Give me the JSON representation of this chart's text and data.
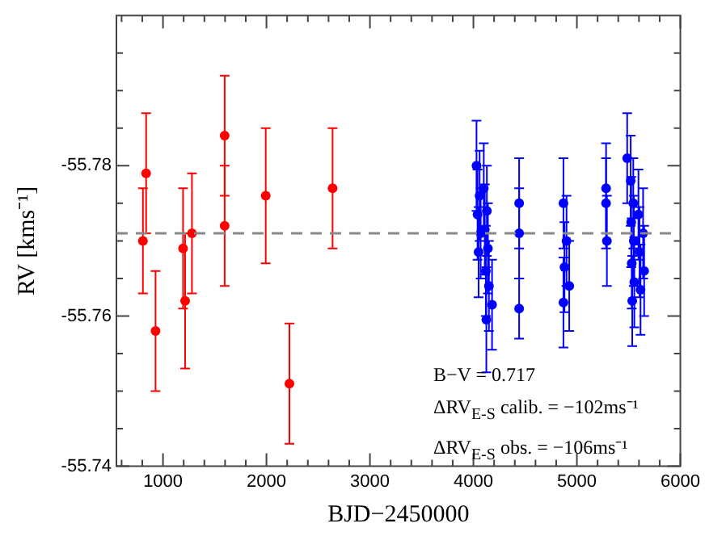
{
  "chart_data": {
    "type": "scatter",
    "xlabel": "BJD−2450000",
    "ylabel": "RV [kms⁻¹]",
    "xlim": [
      550,
      6000
    ],
    "xticks": [
      {
        "value": 600,
        "label": null
      },
      {
        "value": 800,
        "label": null
      },
      1000,
      {
        "value": 1200,
        "label": null
      },
      {
        "value": 1400,
        "label": null
      },
      {
        "value": 1600,
        "label": null
      },
      {
        "value": 1800,
        "label": null
      },
      2000,
      {
        "value": 2200,
        "label": null
      },
      {
        "value": 2400,
        "label": null
      },
      {
        "value": 2600,
        "label": null
      },
      {
        "value": 2800,
        "label": null
      },
      3000,
      {
        "value": 3200,
        "label": null
      },
      {
        "value": 3400,
        "label": null
      },
      {
        "value": 3600,
        "label": null
      },
      {
        "value": 3800,
        "label": null
      },
      4000,
      {
        "value": 4200,
        "label": null
      },
      {
        "value": 4400,
        "label": null
      },
      {
        "value": 4600,
        "label": null
      },
      {
        "value": 4800,
        "label": null
      },
      5000,
      {
        "value": 5200,
        "label": null
      },
      {
        "value": 5400,
        "label": null
      },
      {
        "value": 5600,
        "label": null
      },
      {
        "value": 5800,
        "label": null
      },
      6000
    ],
    "ylim": [
      -55.74,
      -55.8
    ],
    "yticks": [
      -55.74,
      {
        "value": -55.745,
        "label": null
      },
      {
        "value": -55.75,
        "label": null
      },
      {
        "value": -55.755,
        "label": null
      },
      -55.76,
      {
        "value": -55.765,
        "label": null
      },
      {
        "value": -55.77,
        "label": null
      },
      {
        "value": -55.775,
        "label": null
      },
      -55.78,
      {
        "value": -55.785,
        "label": null
      },
      {
        "value": -55.79,
        "label": null
      },
      {
        "value": -55.795,
        "label": null
      }
    ],
    "grid": false,
    "legend": false,
    "marker": "circle",
    "ref_lines": [
      {
        "axis": "y",
        "value": -55.771,
        "color": "#888888",
        "line_style": "dashed"
      }
    ],
    "annotations": [
      "B−V = 0.717",
      "ΔRV$_{E-S}$ calib. = −102ms⁻¹",
      "ΔRV$_{E-S}$ obs. = −106ms⁻¹"
    ],
    "series": [
      {
        "color": "#ff0000",
        "x": [
          806,
          837,
          928,
          1194,
          1214,
          1280,
          1596,
          1596,
          1993,
          2222,
          2639
        ],
        "values": [
          -55.77,
          -55.779,
          -55.758,
          -55.769,
          -55.762,
          -55.771,
          -55.784,
          -55.772,
          -55.776,
          -55.751,
          -55.777
        ],
        "errors": [
          0.007,
          0.008,
          0.008,
          0.008,
          0.009,
          0.008,
          0.008,
          0.008,
          0.009,
          0.008,
          0.008
        ]
      },
      {
        "color": "#0000ff",
        "x": [
          4030,
          4060,
          4040,
          4070,
          4050,
          4100,
          4130,
          4110,
          4140,
          4120,
          4150,
          4180,
          4125,
          4442,
          4442,
          4442,
          4870,
          4900,
          4880,
          4926,
          4870,
          5282,
          5282,
          5290,
          5486,
          5520,
          5545,
          5525,
          5550,
          5530,
          5555,
          5535,
          5595,
          5640,
          5605,
          5650,
          5615
        ],
        "values": [
          -55.78,
          -55.776,
          -55.7735,
          -55.771,
          -55.7685,
          -55.777,
          -55.774,
          -55.7715,
          -55.769,
          -55.766,
          -55.764,
          -55.7615,
          -55.7595,
          -55.775,
          -55.771,
          -55.761,
          -55.775,
          -55.77,
          -55.7665,
          -55.764,
          -55.7618,
          -55.777,
          -55.775,
          -55.77,
          -55.781,
          -55.778,
          -55.775,
          -55.7725,
          -55.77,
          -55.767,
          -55.7645,
          -55.762,
          -55.7735,
          -55.771,
          -55.7685,
          -55.766,
          -55.7635
        ],
        "errors": [
          0.006,
          0.006,
          0.006,
          0.006,
          0.006,
          0.006,
          0.006,
          0.006,
          0.006,
          0.006,
          0.006,
          0.006,
          0.007,
          0.006,
          0.006,
          0.004,
          0.006,
          0.006,
          0.006,
          0.006,
          0.006,
          0.006,
          0.006,
          0.006,
          0.006,
          0.006,
          0.006,
          0.006,
          0.006,
          0.006,
          0.006,
          0.006,
          0.006,
          0.006,
          0.006,
          0.006,
          0.006
        ]
      }
    ]
  }
}
